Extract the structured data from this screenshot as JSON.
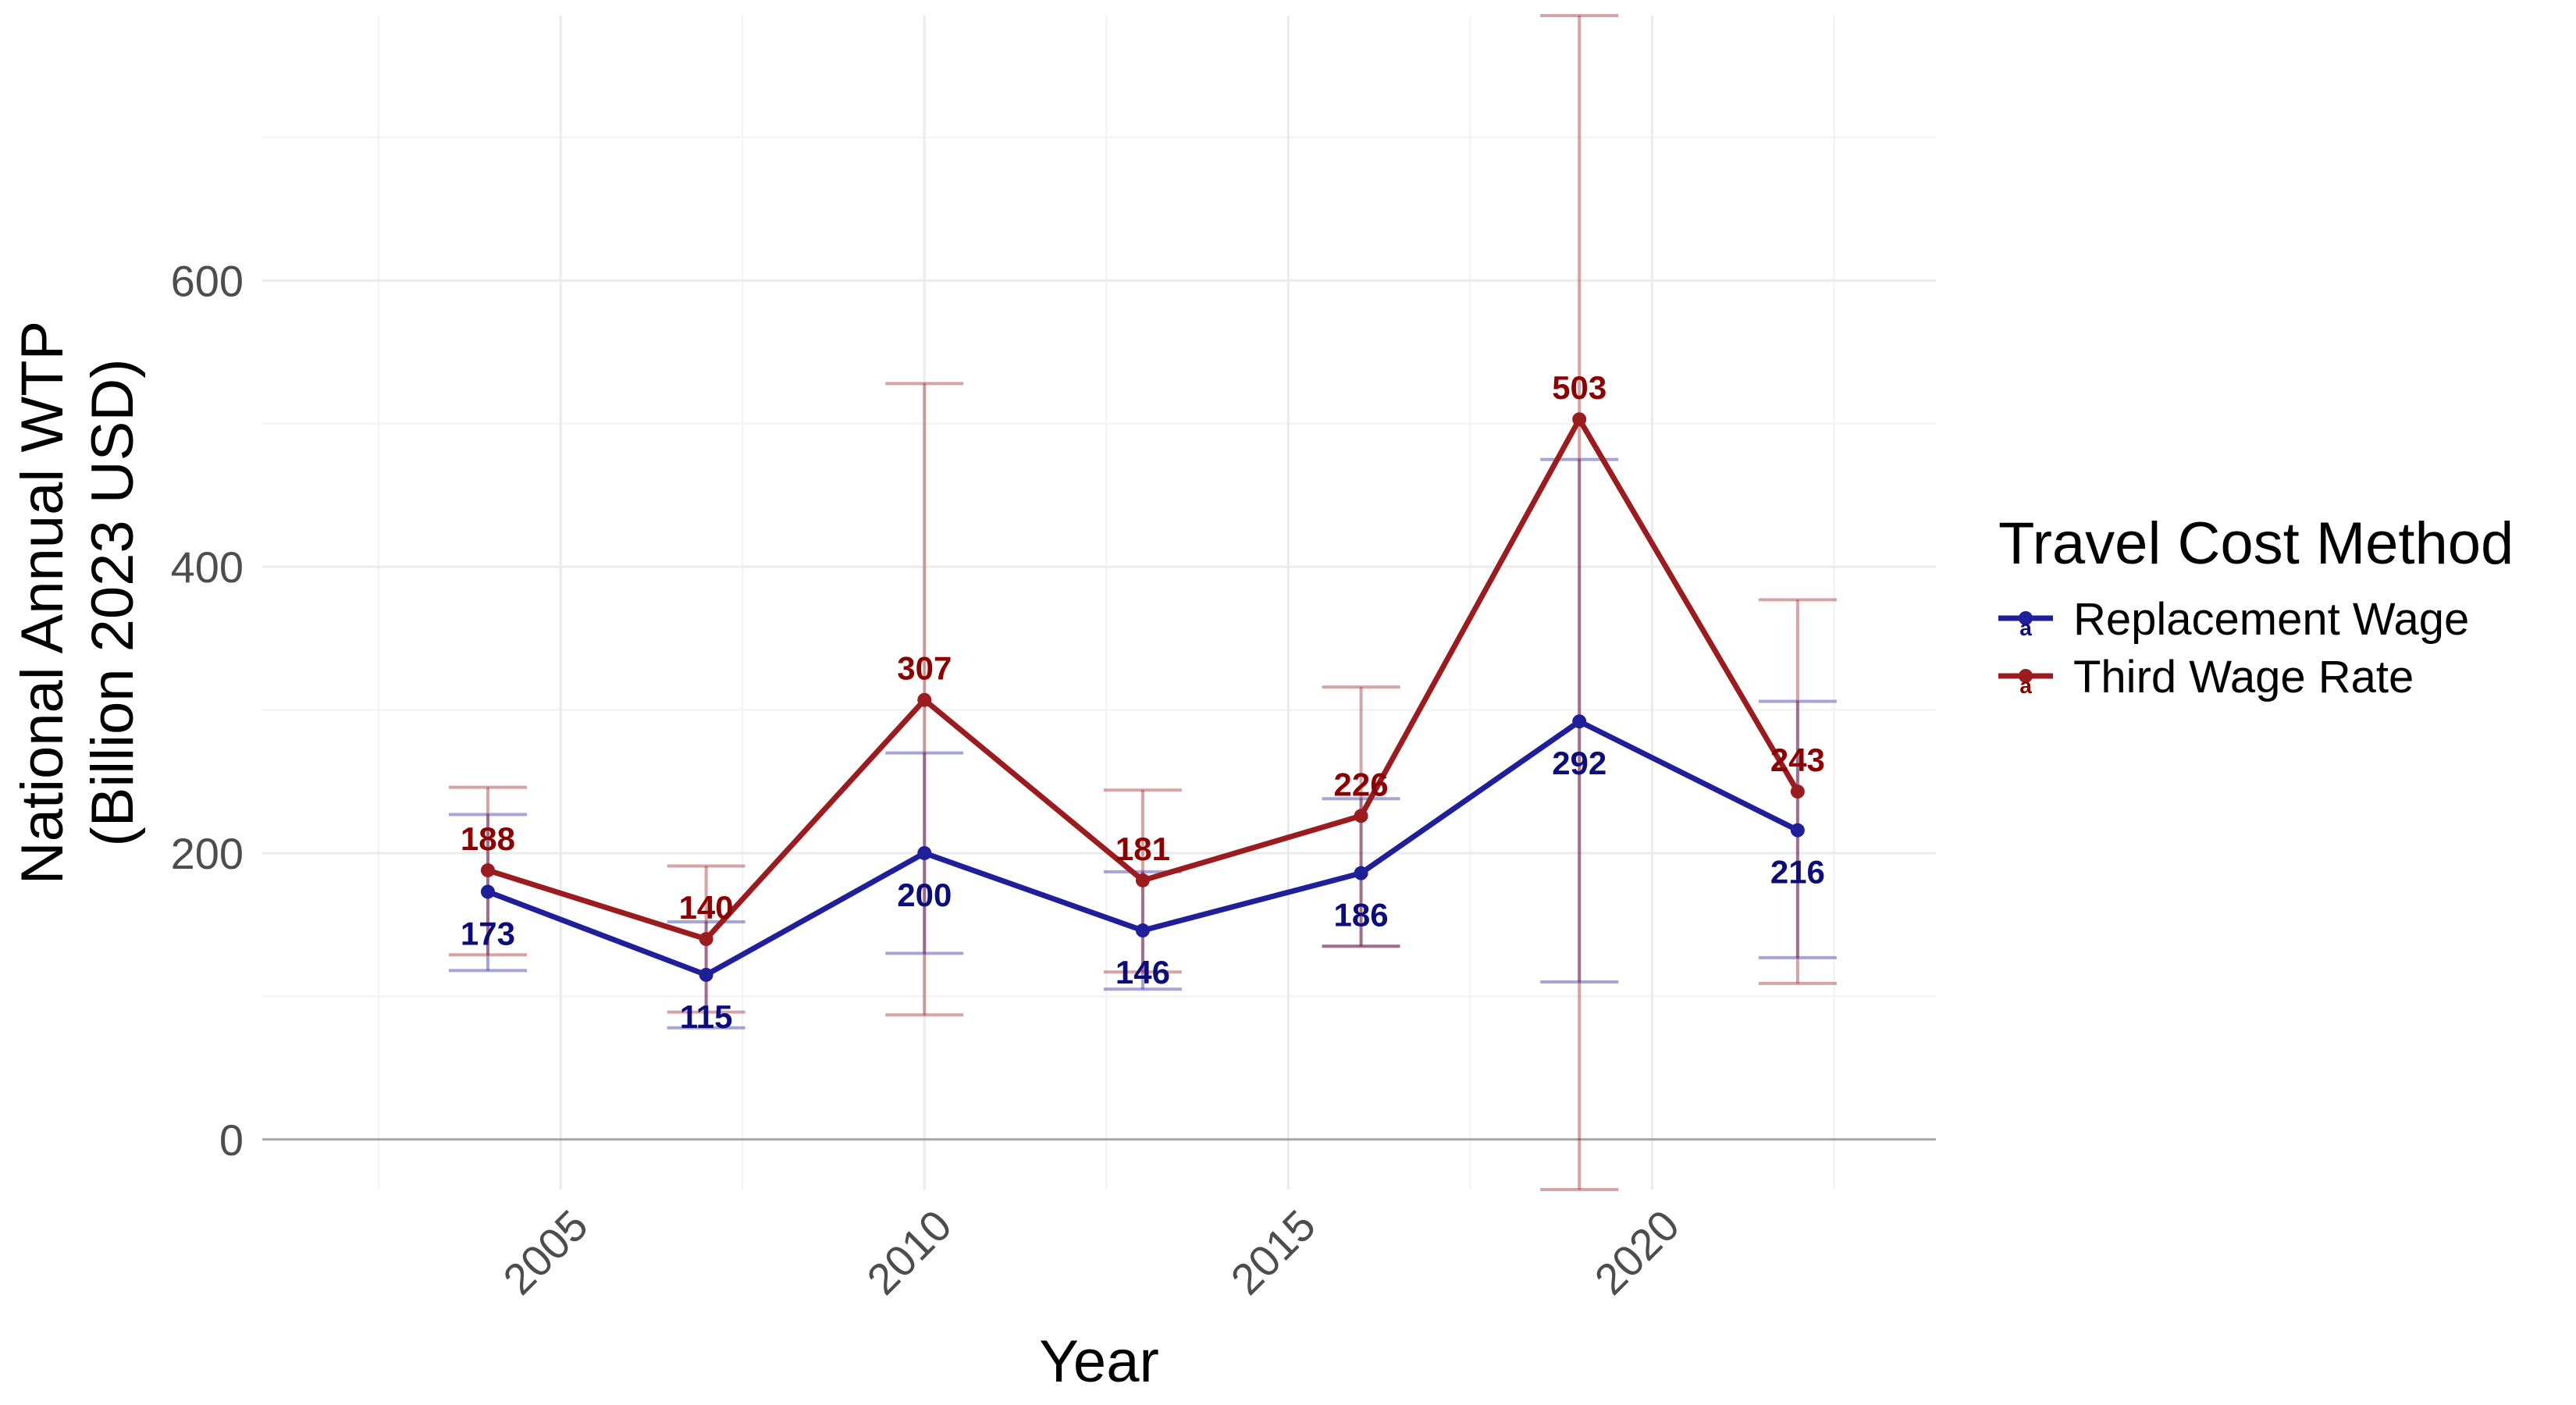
{
  "chart_data": {
    "type": "line",
    "xlabel": "Year",
    "ylabel_line1": "National Annual WTP",
    "ylabel_line2": "(Billion 2023 USD)",
    "x_ticks": [
      2005,
      2010,
      2015,
      2020
    ],
    "y_ticks": [
      0,
      200,
      400,
      600
    ],
    "xlim": [
      2000.9,
      2023.9
    ],
    "ylim": [
      -35,
      785
    ],
    "grid": "on",
    "legend": {
      "title": "Travel Cost Method",
      "placement": "right"
    },
    "x": [
      2004,
      2007,
      2010,
      2013,
      2016,
      2019,
      2022
    ],
    "series": [
      {
        "name": "Replacement Wage",
        "color": "#1f1f9a",
        "label_color": "#0d0d7a",
        "values": [
          173,
          115,
          200,
          146,
          186,
          292,
          216
        ],
        "lower": [
          118,
          78,
          130,
          105,
          135,
          110,
          127
        ],
        "upper": [
          227,
          152,
          270,
          187,
          238,
          475,
          306
        ],
        "label_position": "below"
      },
      {
        "name": "Third Wage Rate",
        "color": "#9b1c1f",
        "label_color": "#8b0000",
        "values": [
          188,
          140,
          307,
          181,
          226,
          503,
          243
        ],
        "lower": [
          129,
          89,
          87,
          117,
          135,
          -35,
          109
        ],
        "upper": [
          246,
          191,
          528,
          244,
          316,
          785,
          377
        ],
        "label_position": "above"
      }
    ]
  }
}
